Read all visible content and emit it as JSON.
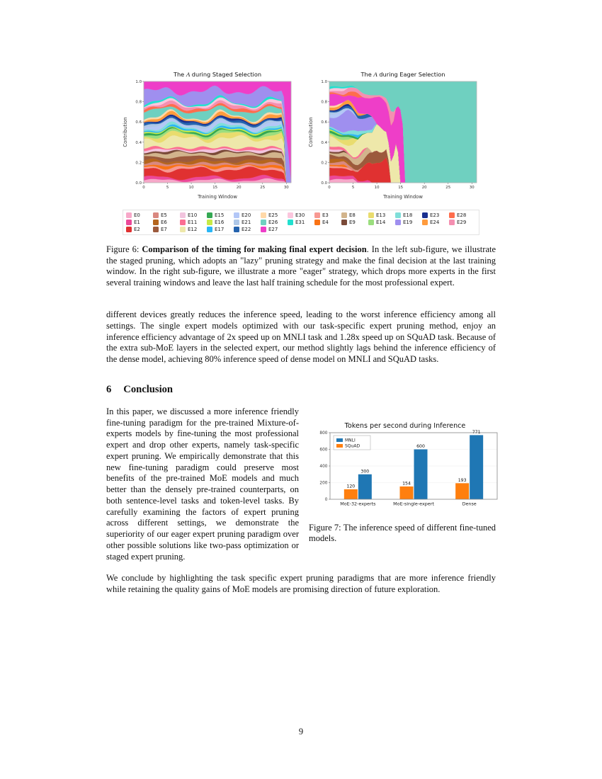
{
  "page": {
    "number": "9"
  },
  "experts": [
    {
      "name": "E0",
      "color": "#f7a8c9",
      "weight": 0.02
    },
    {
      "name": "E1",
      "color": "#ec4899",
      "weight": 0.022
    },
    {
      "name": "E2",
      "color": "#e03131",
      "weight": 0.07
    },
    {
      "name": "E3",
      "color": "#f79892",
      "weight": 0.018
    },
    {
      "name": "E4",
      "color": "#f97316",
      "weight": 0.015
    },
    {
      "name": "E5",
      "color": "#d98880",
      "weight": 0.015
    },
    {
      "name": "E6",
      "color": "#b5651d",
      "weight": 0.02
    },
    {
      "name": "E7",
      "color": "#9c5a3c",
      "weight": 0.035
    },
    {
      "name": "E8",
      "color": "#d2b48c",
      "weight": 0.03
    },
    {
      "name": "E9",
      "color": "#7a4a38",
      "weight": 0.012
    },
    {
      "name": "E10",
      "color": "#f2c4de",
      "weight": 0.015
    },
    {
      "name": "E11",
      "color": "#fb6f92",
      "weight": 0.018
    },
    {
      "name": "E12",
      "color": "#eee8aa",
      "weight": 0.075
    },
    {
      "name": "E13",
      "color": "#e9dc6e",
      "weight": 0.03
    },
    {
      "name": "E14",
      "color": "#9bde7e",
      "weight": 0.015
    },
    {
      "name": "E15",
      "color": "#34a853",
      "weight": 0.012
    },
    {
      "name": "E16",
      "color": "#c7ea46",
      "weight": 0.01
    },
    {
      "name": "E17",
      "color": "#29b6f6",
      "weight": 0.012
    },
    {
      "name": "E18",
      "color": "#80ded9",
      "weight": 0.015
    },
    {
      "name": "E19",
      "color": "#9f8fef",
      "weight": 0.09
    },
    {
      "name": "E20",
      "color": "#b3c7f7",
      "weight": 0.018
    },
    {
      "name": "E21",
      "color": "#aec7e8",
      "weight": 0.015
    },
    {
      "name": "E22",
      "color": "#2563ae",
      "weight": 0.015
    },
    {
      "name": "E23",
      "color": "#1a2f8f",
      "weight": 0.012
    },
    {
      "name": "E24",
      "color": "#ff9b3d",
      "weight": 0.018
    },
    {
      "name": "E25",
      "color": "#ffd9a8",
      "weight": 0.012
    },
    {
      "name": "E26",
      "color": "#6fd0c0",
      "weight": 0.05
    },
    {
      "name": "E27",
      "color": "#ee3ec8",
      "weight": 0.08
    },
    {
      "name": "E28",
      "color": "#ff6d4d",
      "weight": 0.02
    },
    {
      "name": "E29",
      "color": "#f48fb1",
      "weight": 0.02
    },
    {
      "name": "E30",
      "color": "#fbc6dd",
      "weight": 0.015
    },
    {
      "name": "E31",
      "color": "#22e0cf",
      "weight": 0.012
    }
  ],
  "chart_data": [
    {
      "type": "stacked_area",
      "title": "The A during Staged Selection",
      "title_parts": [
        "The ",
        "A",
        " during Staged Selection"
      ],
      "xlabel": "Training Window",
      "ylabel": "Contribution",
      "xlim": [
        0,
        31
      ],
      "ylim": [
        0,
        1
      ],
      "x_ticks": [
        0,
        5,
        10,
        15,
        20,
        25,
        30
      ],
      "y_ticks": [
        "0.0",
        "0.2",
        "0.4",
        "0.6",
        "0.8",
        "1.0"
      ],
      "series_order": [
        "E0",
        "E1",
        "E2",
        "E3",
        "E4",
        "E5",
        "E6",
        "E7",
        "E8",
        "E9",
        "E10",
        "E11",
        "E12",
        "E13",
        "E14",
        "E15",
        "E16",
        "E17",
        "E18",
        "E20",
        "E21",
        "E22",
        "E23",
        "E24",
        "E25",
        "E26",
        "E28",
        "E29",
        "E30",
        "E31",
        "E19",
        "E27"
      ],
      "drop_window": {
        "E0": 30,
        "E1": 30,
        "E2": 30,
        "E3": 30,
        "E4": 30,
        "E5": 30,
        "E6": 30,
        "E7": 30,
        "E8": 30,
        "E9": 30,
        "E10": 30,
        "E11": 30,
        "E12": 30,
        "E13": 30,
        "E14": 30,
        "E15": 30,
        "E16": 30,
        "E17": 30,
        "E18": 30,
        "E19": 31,
        "E20": 30,
        "E21": 30,
        "E22": 30,
        "E23": 30,
        "E24": 30,
        "E25": 30,
        "E26": 30,
        "E28": 30,
        "E29": 30,
        "E30": 30,
        "E31": 30,
        "E27": null
      },
      "description": "All 32 experts keep contributing across training windows 0-30 (lazy pruning); only at the last window are the other experts dropped and E27 is kept, its contribution reaching 1.0. Per-expert band values are visual estimates."
    },
    {
      "type": "stacked_area",
      "title": "The A during Eager Selection",
      "title_parts": [
        "The ",
        "A",
        " during Eager Selection"
      ],
      "xlabel": "Training Window",
      "ylabel": "Contribution",
      "xlim": [
        0,
        31
      ],
      "ylim": [
        0,
        1
      ],
      "x_ticks": [
        0,
        5,
        10,
        15,
        20,
        25,
        30
      ],
      "y_ticks": [
        "0.0",
        "0.2",
        "0.4",
        "0.6",
        "0.8",
        "1.0"
      ],
      "series_order": [
        "E0",
        "E1",
        "E2",
        "E3",
        "E4",
        "E5",
        "E6",
        "E7",
        "E8",
        "E9",
        "E10",
        "E11",
        "E12",
        "E13",
        "E14",
        "E15",
        "E16",
        "E17",
        "E18",
        "E19",
        "E20",
        "E21",
        "E22",
        "E23",
        "E24",
        "E25",
        "E27",
        "E28",
        "E29",
        "E30",
        "E31",
        "E26"
      ],
      "drop_window": {
        "E0": 6,
        "E1": 9,
        "E2": 13,
        "E3": 5,
        "E4": 4,
        "E5": 7,
        "E6": 5,
        "E7": 13,
        "E8": 9,
        "E9": 4,
        "E10": 3,
        "E11": 8,
        "E12": 15,
        "E13": 6,
        "E14": 5,
        "E15": 8,
        "E16": 3,
        "E17": 7,
        "E18": 10,
        "E19": 10,
        "E20": 4,
        "E21": 6,
        "E22": 9,
        "E23": 5,
        "E24": 8,
        "E25": 3,
        "E26": null,
        "E27": 16,
        "E28": 7,
        "E29": 14,
        "E30": 4,
        "E31": 6
      },
      "description": "Experts are pruned progressively during the first ~16 training windows; the surviving expert E26 grows until its contribution is 1.0 from about window 16 to the end. Per-expert band values are visual estimates."
    },
    {
      "type": "bar",
      "title": "Tokens per second during Inference",
      "categories": [
        "MoE-32-experts",
        "MoE-single-expert",
        "Dense"
      ],
      "series": [
        {
          "name": "MNLI",
          "color": "#1f77b4",
          "values": [
            300,
            600,
            771
          ]
        },
        {
          "name": "SQuAD",
          "color": "#ff7f0e",
          "values": [
            120,
            154,
            193
          ]
        }
      ],
      "ylim": [
        0,
        800
      ],
      "y_ticks": [
        0,
        200,
        400,
        600,
        800
      ],
      "legend_position": "upper left",
      "bar_labels_shown": true
    }
  ],
  "figure6": {
    "legend_rows": [
      [
        "E0",
        "E5",
        "E10",
        "E15",
        "E20",
        "E25",
        "E30",
        "E3",
        "E8",
        "E13",
        "E18",
        "E23",
        "E28"
      ],
      [
        "E1",
        "E6",
        "E11",
        "E16",
        "E21",
        "E26",
        "E31",
        "E4",
        "E9",
        "E14",
        "E19",
        "E24",
        "E29"
      ],
      [
        "E2",
        "E7",
        "E12",
        "E17",
        "E22",
        "E27"
      ]
    ],
    "caption_prefix": "Figure 6: ",
    "caption_bold": "Comparison of the timing for making final expert decision",
    "caption_rest": ". In the left sub-figure, we illustrate the staged pruning, which adopts an \"lazy\" pruning strategy and make the final decision at the last training window. In the right sub-figure, we illustrate a more \"eager\" strategy, which drops more experts in the first several training windows and leave the last half training schedule for the most professional expert."
  },
  "body": {
    "paragraph_devices": "different devices greatly reduces the inference speed, leading to the worst inference efficiency among all settings. The single expert models optimized with our task-specific expert pruning method, enjoy an inference efficiency advantage of 2x speed up on MNLI task and 1.28x speed up on SQuAD task. Because of the extra sub-MoE layers in the selected expert, our method slightly lags behind the inference efficiency of the dense model, achieving 80% inference speed of dense model on MNLI and SQuAD tasks.",
    "conclusion_paragraph": "In this paper, we discussed a more inference friendly fine-tuning paradigm for the pre-trained Mixture-of-experts models by fine-tuning the most professional expert and drop other experts, namely task-specific expert pruning. We empirically demonstrate that this new fine-tuning paradigm could preserve most benefits of the pre-trained MoE models and much better than the densely pre-trained counterparts, on both sentence-level tasks and token-level tasks. By carefully examining the factors of expert pruning across different settings, we demonstrate the superiority of our eager expert pruning paradigm over other possible solutions like two-pass optimization or staged expert pruning.",
    "final_paragraph": "We conclude by highlighting the task specific expert pruning paradigms that are more inference friendly while retaining the quality gains of MoE models are promising direction of future exploration."
  },
  "section": {
    "number": "6",
    "title": "Conclusion"
  },
  "figure7": {
    "caption_prefix": "Figure 7: ",
    "caption_rest": "The inference speed of different fine-tuned models."
  }
}
